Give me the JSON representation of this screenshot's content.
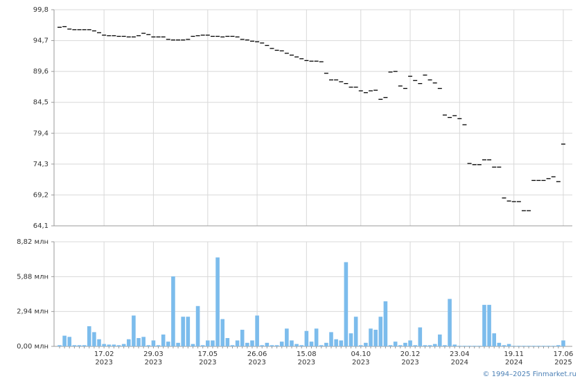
{
  "chart_data": [
    {
      "type": "tick",
      "color": "#000000",
      "grid": true,
      "ylim": [
        64.1,
        99.8
      ],
      "yticks": [
        {
          "value": 64.1,
          "label": "64,1"
        },
        {
          "value": 69.2,
          "label": "69,2"
        },
        {
          "value": 74.3,
          "label": "74,3"
        },
        {
          "value": 79.4,
          "label": "79,4"
        },
        {
          "value": 84.5,
          "label": "84,5"
        },
        {
          "value": 89.6,
          "label": "89,6"
        },
        {
          "value": 94.7,
          "label": "94,7"
        },
        {
          "value": 99.8,
          "label": "99,8"
        }
      ],
      "values": [
        96.9,
        97.0,
        96.6,
        96.5,
        96.5,
        96.5,
        96.5,
        96.3,
        96.0,
        95.6,
        95.5,
        95.5,
        95.4,
        95.4,
        95.3,
        95.3,
        95.5,
        95.9,
        95.7,
        95.3,
        95.3,
        95.3,
        94.9,
        94.8,
        94.8,
        94.8,
        94.9,
        95.4,
        95.5,
        95.6,
        95.6,
        95.4,
        95.4,
        95.3,
        95.4,
        95.4,
        95.3,
        94.9,
        94.8,
        94.6,
        94.5,
        94.3,
        93.9,
        93.4,
        93.1,
        93.0,
        92.6,
        92.3,
        92.0,
        91.7,
        91.4,
        91.3,
        91.3,
        91.2,
        89.3,
        88.2,
        88.2,
        87.9,
        87.6,
        87.0,
        87.0,
        86.4,
        86.1,
        86.4,
        86.5,
        85.0,
        85.3,
        89.5,
        89.6,
        87.2,
        86.8,
        88.8,
        88.1,
        87.6,
        89.0,
        88.2,
        87.7,
        86.8,
        82.4,
        82.0,
        82.3,
        81.8,
        80.8,
        74.4,
        74.2,
        74.2,
        75.0,
        75.0,
        73.8,
        73.8,
        68.7,
        68.2,
        68.1,
        68.1,
        66.6,
        66.6,
        71.6,
        71.6,
        71.6,
        71.9,
        72.2,
        71.4,
        77.6
      ]
    },
    {
      "type": "bar",
      "color": "#7cbcec",
      "grid": true,
      "ylim": [
        0,
        8.82
      ],
      "yticks": [
        {
          "value": 0,
          "label": "0,00 млн"
        },
        {
          "value": 2.94,
          "label": "2,94 млн"
        },
        {
          "value": 5.88,
          "label": "5,88 млн"
        },
        {
          "value": 8.82,
          "label": "8,82 млн"
        }
      ],
      "categories": [
        null,
        null,
        null,
        null,
        null,
        null,
        null,
        null,
        null,
        "17.02\n2023",
        null,
        null,
        null,
        null,
        null,
        null,
        null,
        null,
        null,
        "29.03\n2023",
        null,
        null,
        null,
        null,
        null,
        null,
        null,
        null,
        null,
        null,
        "17.05\n2023",
        null,
        null,
        null,
        null,
        null,
        null,
        null,
        null,
        null,
        "26.06\n2023",
        null,
        null,
        null,
        null,
        null,
        null,
        null,
        null,
        null,
        "15.08\n2023",
        null,
        null,
        null,
        null,
        null,
        null,
        null,
        null,
        null,
        null,
        "04.10\n2023",
        null,
        null,
        null,
        null,
        null,
        null,
        null,
        null,
        null,
        "20.12\n2023",
        null,
        null,
        null,
        null,
        null,
        null,
        null,
        null,
        null,
        "23.04\n2024",
        null,
        null,
        null,
        null,
        null,
        null,
        null,
        null,
        null,
        null,
        "19.11\n2024",
        null,
        null,
        null,
        null,
        null,
        null,
        null,
        null,
        null,
        "17.06\n2025"
      ],
      "values": [
        0.1,
        0.9,
        0.8,
        0.1,
        0.1,
        0.1,
        1.7,
        1.2,
        0.6,
        0.2,
        0.15,
        0.15,
        0.1,
        0.2,
        0.6,
        2.6,
        0.7,
        0.8,
        0.1,
        0.5,
        0.1,
        1.0,
        0.4,
        5.9,
        0.3,
        2.5,
        2.5,
        0.2,
        3.4,
        0.1,
        0.5,
        0.5,
        7.5,
        2.3,
        0.7,
        0.1,
        0.5,
        1.4,
        0.3,
        0.5,
        2.6,
        0.1,
        0.3,
        0.1,
        0.1,
        0.4,
        1.5,
        0.5,
        0.2,
        0.1,
        1.3,
        0.4,
        1.5,
        0.1,
        0.3,
        1.2,
        0.6,
        0.5,
        7.1,
        1.1,
        2.5,
        0.1,
        0.3,
        1.5,
        1.4,
        2.5,
        3.8,
        0.1,
        0.4,
        0.1,
        0.3,
        0.5,
        0.1,
        1.6,
        0.1,
        0.1,
        0.2,
        1.0,
        0.1,
        4.0,
        0.15,
        0.05,
        0.05,
        0.05,
        0.05,
        0.05,
        3.5,
        3.5,
        1.1,
        0.3,
        0.1,
        0.2,
        0.05,
        0.05,
        0.05,
        0.05,
        0.05,
        0.05,
        0.05,
        0.05,
        0.05,
        0.1,
        0.5
      ]
    }
  ],
  "footer": "© 1994–2025 Finmarket.ru"
}
